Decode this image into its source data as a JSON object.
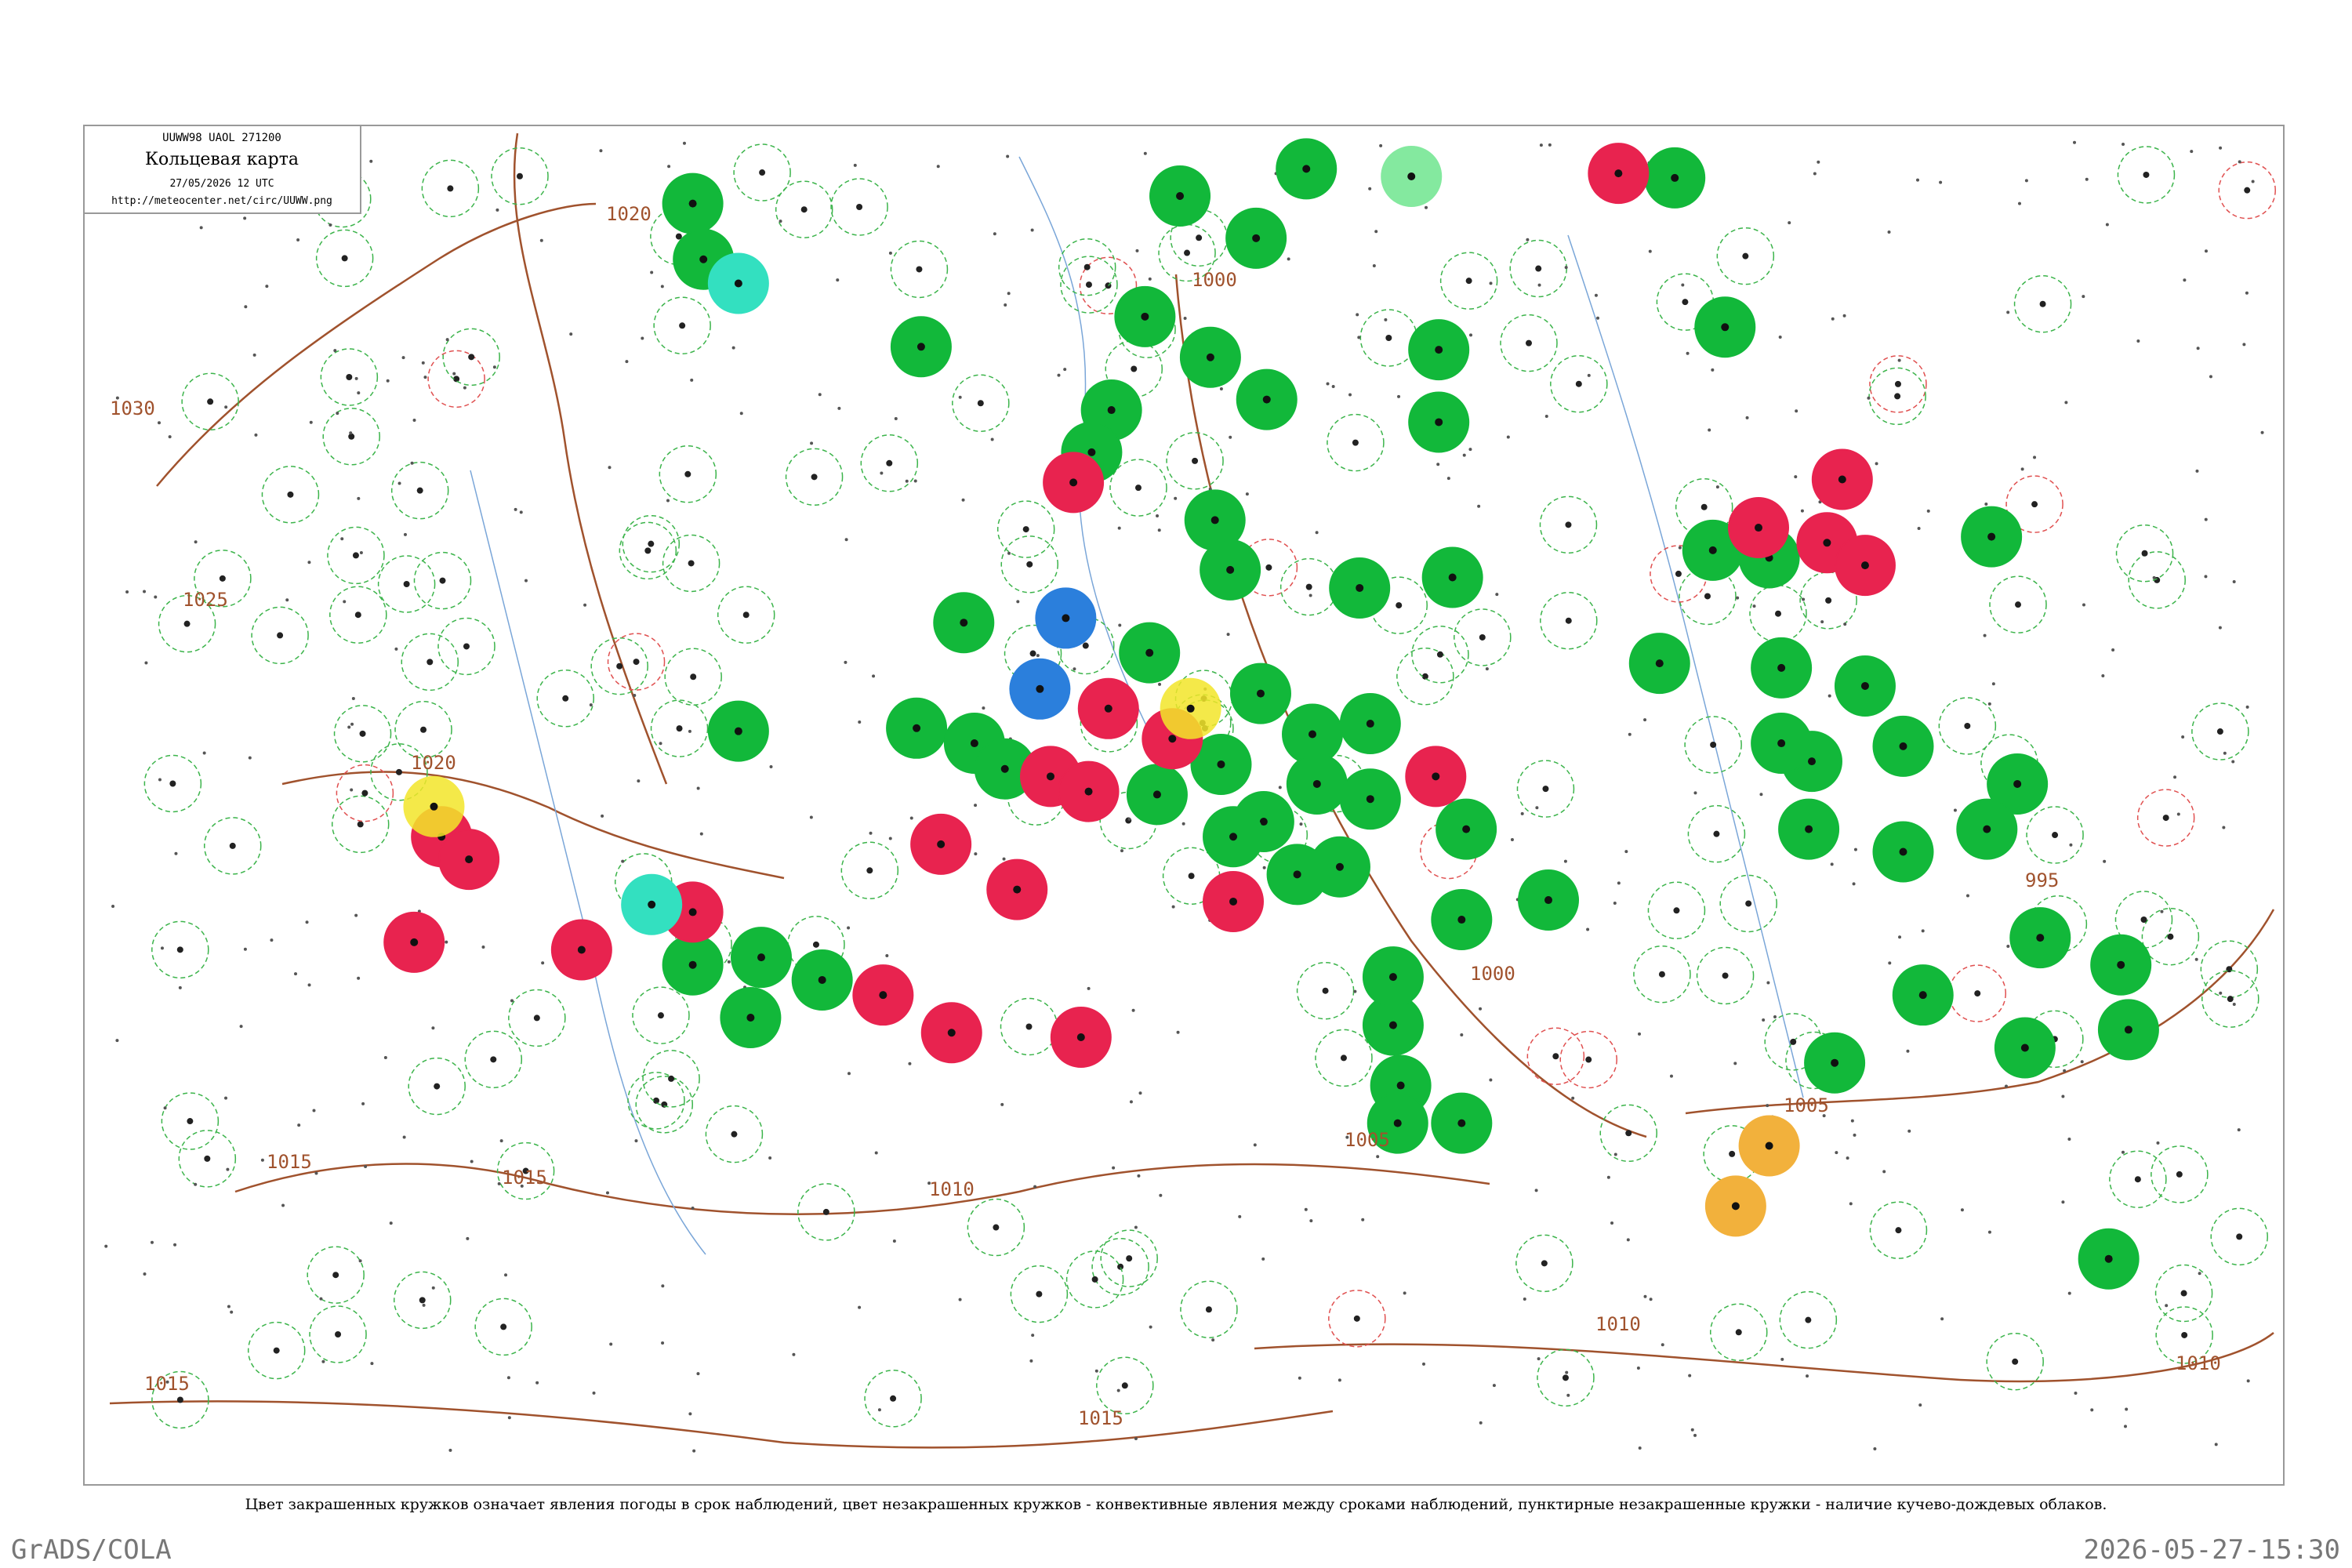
{
  "header": {
    "code": "UUWW98 UAOL 271200",
    "title": "Кольцевая карта",
    "date": "27/05/2026 12 UTC",
    "url": "http://meteocenter.net/circ/UUWW.png"
  },
  "isobars": [
    "1030",
    "1025",
    "1020",
    "1020",
    "1015",
    "1015",
    "1015",
    "1015",
    "1010",
    "1010",
    "1010",
    "1005",
    "1005",
    "1000",
    "1000",
    "995"
  ],
  "caption": "Цвет закрашенных кружков означает явления погоды в срок наблюдений, цвет незакрашенных кружков - конвективные явления между сроками наблюдений, пунктирные незакрашенные кружки - наличие кучево-дождевых облаков.",
  "footer": {
    "left": "GrADS/COLA",
    "right": "2026-05-27-15:30"
  }
}
